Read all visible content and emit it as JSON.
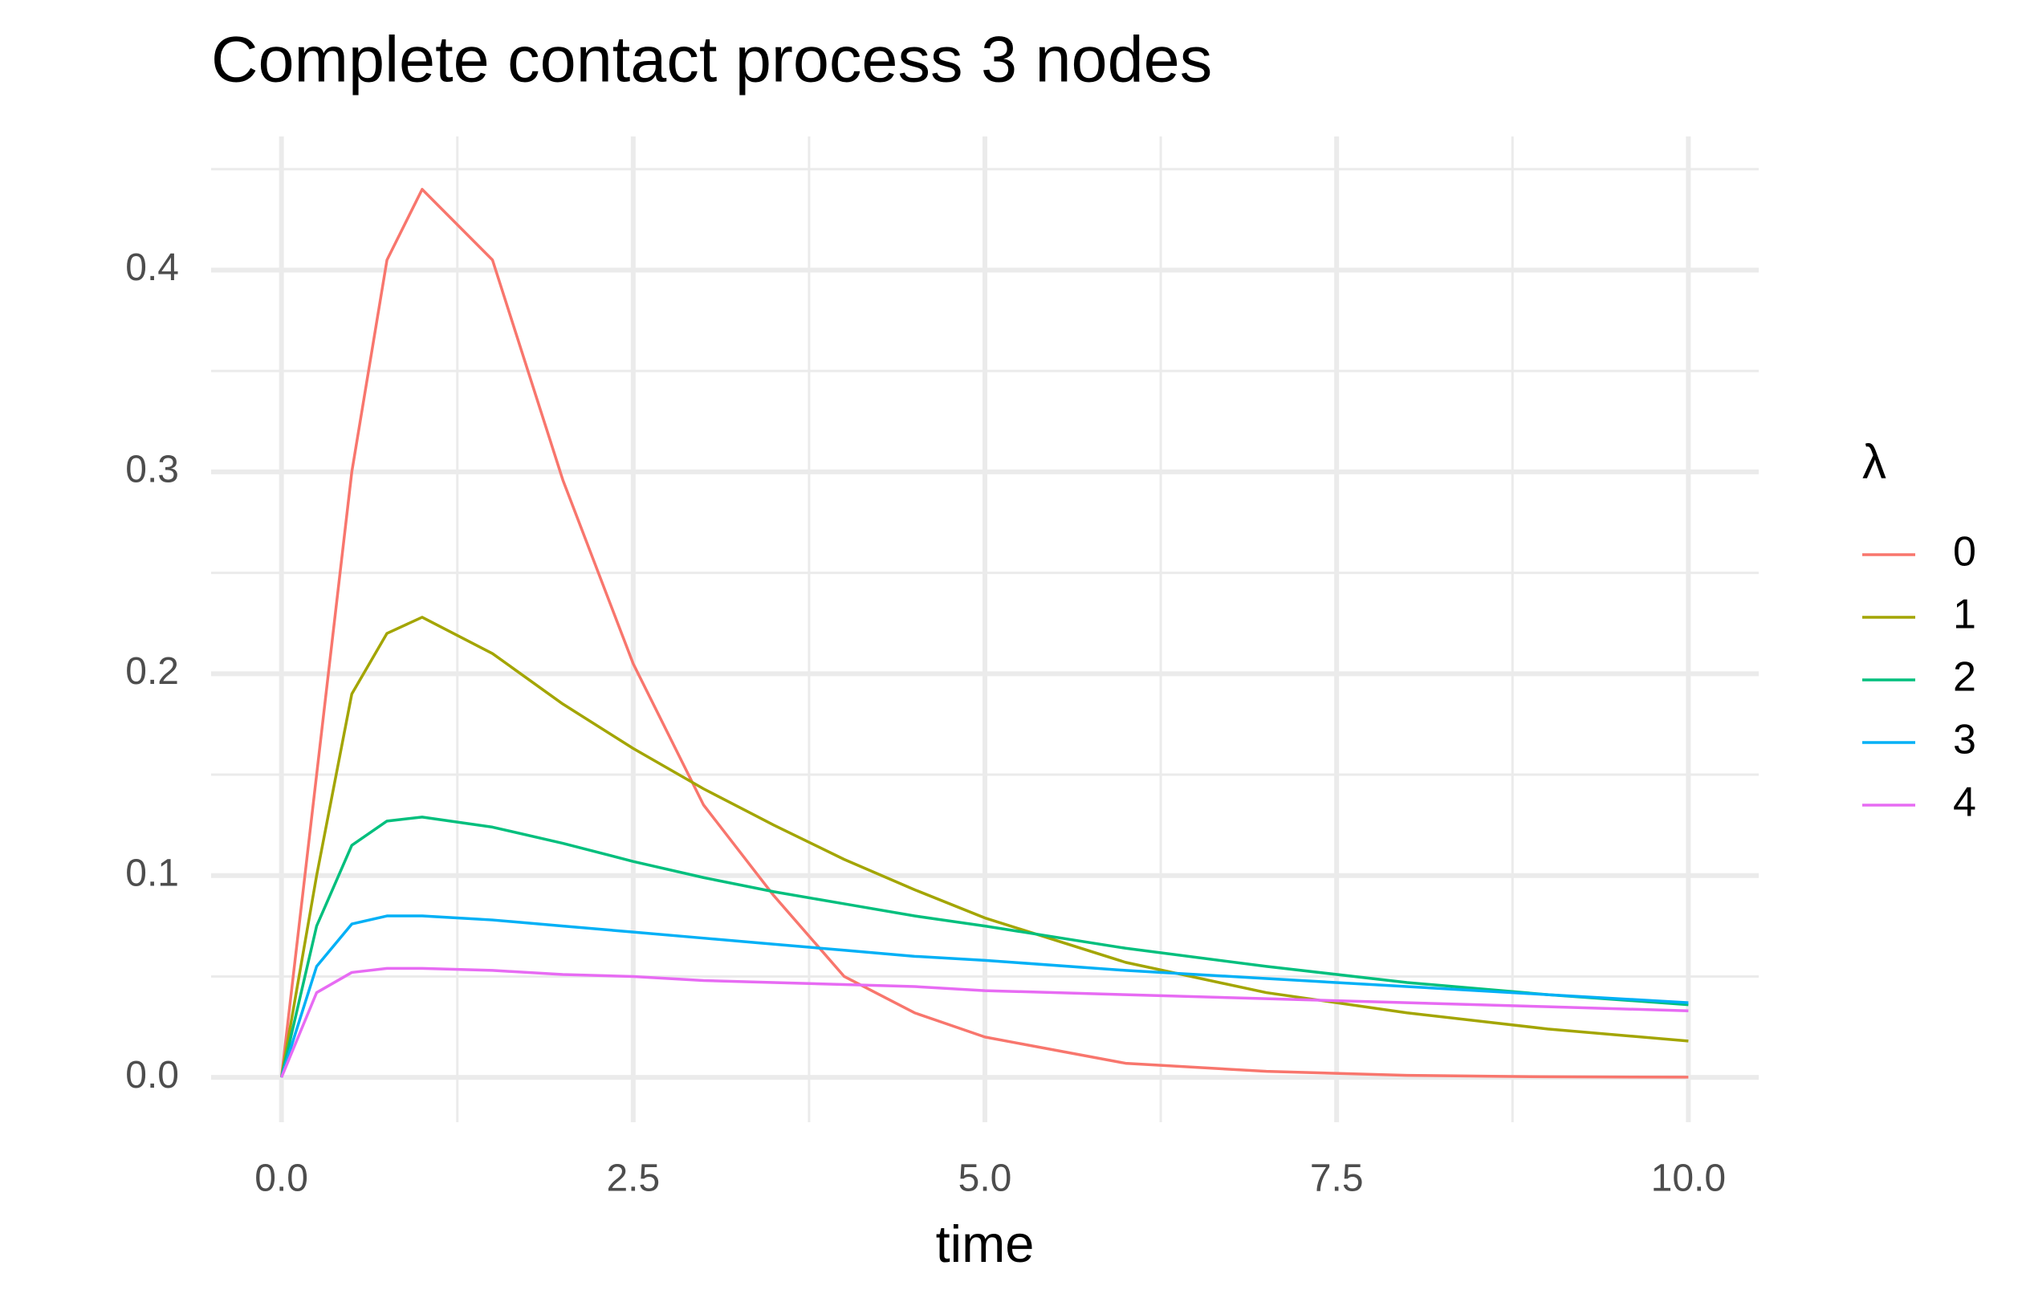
{
  "chart_data": {
    "type": "line",
    "title": "Complete contact process 3 nodes",
    "x_label": "time",
    "legend_title": "λ",
    "x": [
      0,
      0.25,
      0.5,
      0.75,
      1,
      1.5,
      2,
      2.5,
      3,
      3.5,
      4,
      4.5,
      5,
      6,
      7,
      8,
      9,
      10
    ],
    "series": [
      {
        "name": "0",
        "color": "#F8766D",
        "values": [
          0,
          0.15,
          0.3,
          0.405,
          0.44,
          0.405,
          0.296,
          0.205,
          0.135,
          0.09,
          0.05,
          0.032,
          0.02,
          0.007,
          0.003,
          0.001,
          0.0003,
          0.0001
        ]
      },
      {
        "name": "1",
        "color": "#A3A500",
        "values": [
          0,
          0.1,
          0.19,
          0.22,
          0.228,
          0.21,
          0.185,
          0.163,
          0.143,
          0.125,
          0.108,
          0.093,
          0.079,
          0.057,
          0.042,
          0.032,
          0.024,
          0.018
        ]
      },
      {
        "name": "2",
        "color": "#00BF7D",
        "values": [
          0,
          0.075,
          0.115,
          0.127,
          0.129,
          0.124,
          0.116,
          0.107,
          0.099,
          0.092,
          0.086,
          0.08,
          0.075,
          0.064,
          0.055,
          0.047,
          0.041,
          0.036
        ]
      },
      {
        "name": "3",
        "color": "#00B0F6",
        "values": [
          0,
          0.055,
          0.076,
          0.08,
          0.08,
          0.078,
          0.075,
          0.072,
          0.069,
          0.066,
          0.063,
          0.06,
          0.058,
          0.053,
          0.049,
          0.045,
          0.041,
          0.037
        ]
      },
      {
        "name": "4",
        "color": "#E76BF3",
        "values": [
          0,
          0.042,
          0.052,
          0.054,
          0.054,
          0.053,
          0.051,
          0.05,
          0.048,
          0.047,
          0.046,
          0.045,
          0.043,
          0.041,
          0.039,
          0.037,
          0.035,
          0.033
        ]
      }
    ],
    "xlim": [
      -0.5,
      10.5
    ],
    "ylim": [
      -0.0222,
      0.4662
    ],
    "xticks": [
      {
        "value": 0,
        "label": "0.0"
      },
      2.5,
      {
        "value": 5,
        "label": "5.0"
      },
      7.5,
      {
        "value": 10,
        "label": "10.0"
      }
    ],
    "yticks": [
      {
        "value": 0,
        "label": "0.0"
      },
      0.1,
      0.2,
      0.3,
      0.4
    ],
    "x_minor_breaks": [
      1.25,
      3.75,
      6.25,
      8.75
    ],
    "y_minor_breaks": [
      0.05,
      0.15,
      0.25,
      0.35,
      0.45
    ],
    "grid": true
  }
}
